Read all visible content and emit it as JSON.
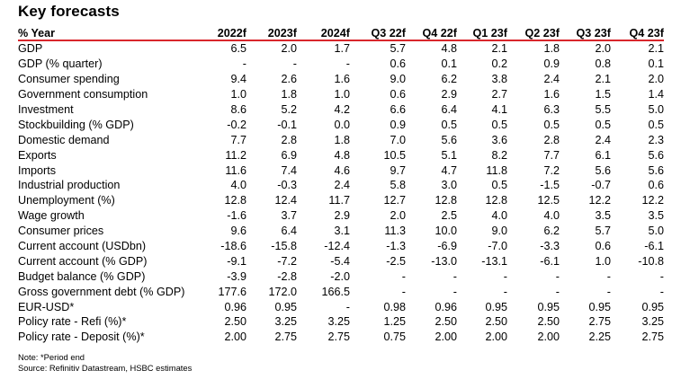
{
  "title": "Key forecasts",
  "columns": [
    "% Year",
    "2022f",
    "2023f",
    "2024f",
    "Q3 22f",
    "Q4 22f",
    "Q1 23f",
    "Q2 23f",
    "Q3 23f",
    "Q4 23f"
  ],
  "rows": [
    {
      "label": "GDP",
      "values": [
        "6.5",
        "2.0",
        "1.7",
        "5.7",
        "4.8",
        "2.1",
        "1.8",
        "2.0",
        "2.1"
      ]
    },
    {
      "label": "GDP (% quarter)",
      "values": [
        "-",
        "-",
        "-",
        "0.6",
        "0.1",
        "0.2",
        "0.9",
        "0.8",
        "0.1"
      ]
    },
    {
      "label": "Consumer spending",
      "values": [
        "9.4",
        "2.6",
        "1.6",
        "9.0",
        "6.2",
        "3.8",
        "2.4",
        "2.1",
        "2.0"
      ]
    },
    {
      "label": "Government consumption",
      "values": [
        "1.0",
        "1.8",
        "1.0",
        "0.6",
        "2.9",
        "2.7",
        "1.6",
        "1.5",
        "1.4"
      ]
    },
    {
      "label": "Investment",
      "values": [
        "8.6",
        "5.2",
        "4.2",
        "6.6",
        "6.4",
        "4.1",
        "6.3",
        "5.5",
        "5.0"
      ]
    },
    {
      "label": "Stockbuilding (% GDP)",
      "values": [
        "-0.2",
        "-0.1",
        "0.0",
        "0.9",
        "0.5",
        "0.5",
        "0.5",
        "0.5",
        "0.5"
      ]
    },
    {
      "label": "Domestic demand",
      "values": [
        "7.7",
        "2.8",
        "1.8",
        "7.0",
        "5.6",
        "3.6",
        "2.8",
        "2.4",
        "2.3"
      ]
    },
    {
      "label": "Exports",
      "values": [
        "11.2",
        "6.9",
        "4.8",
        "10.5",
        "5.1",
        "8.2",
        "7.7",
        "6.1",
        "5.6"
      ]
    },
    {
      "label": "Imports",
      "values": [
        "11.6",
        "7.4",
        "4.6",
        "9.7",
        "4.7",
        "11.8",
        "7.2",
        "5.6",
        "5.6"
      ]
    },
    {
      "label": "Industrial production",
      "values": [
        "4.0",
        "-0.3",
        "2.4",
        "5.8",
        "3.0",
        "0.5",
        "-1.5",
        "-0.7",
        "0.6"
      ]
    },
    {
      "label": "Unemployment (%)",
      "values": [
        "12.8",
        "12.4",
        "11.7",
        "12.7",
        "12.8",
        "12.8",
        "12.5",
        "12.2",
        "12.2"
      ]
    },
    {
      "label": "Wage growth",
      "values": [
        "-1.6",
        "3.7",
        "2.9",
        "2.0",
        "2.5",
        "4.0",
        "4.0",
        "3.5",
        "3.5"
      ]
    },
    {
      "label": "Consumer prices",
      "values": [
        "9.6",
        "6.4",
        "3.1",
        "11.3",
        "10.0",
        "9.0",
        "6.2",
        "5.7",
        "5.0"
      ]
    },
    {
      "label": "Current account (USDbn)",
      "values": [
        "-18.6",
        "-15.8",
        "-12.4",
        "-1.3",
        "-6.9",
        "-7.0",
        "-3.3",
        "0.6",
        "-6.1"
      ]
    },
    {
      "label": "Current account (% GDP)",
      "values": [
        "-9.1",
        "-7.2",
        "-5.4",
        "-2.5",
        "-13.0",
        "-13.1",
        "-6.1",
        "1.0",
        "-10.8"
      ]
    },
    {
      "label": "Budget balance (% GDP)",
      "values": [
        "-3.9",
        "-2.8",
        "-2.0",
        "-",
        "-",
        "-",
        "-",
        "-",
        "-"
      ]
    },
    {
      "label": "Gross government debt (% GDP)",
      "values": [
        "177.6",
        "172.0",
        "166.5",
        "-",
        "-",
        "-",
        "-",
        "-",
        "-"
      ]
    },
    {
      "label": "EUR-USD*",
      "values": [
        "0.96",
        "0.95",
        "-",
        "0.98",
        "0.96",
        "0.95",
        "0.95",
        "0.95",
        "0.95"
      ]
    },
    {
      "label": "Policy rate - Refi (%)*",
      "values": [
        "2.50",
        "3.25",
        "3.25",
        "1.25",
        "2.50",
        "2.50",
        "2.50",
        "2.75",
        "3.25"
      ]
    },
    {
      "label": "Policy rate - Deposit (%)*",
      "values": [
        "2.00",
        "2.75",
        "2.75",
        "0.75",
        "2.00",
        "2.00",
        "2.00",
        "2.25",
        "2.75"
      ]
    }
  ],
  "notes": {
    "note": "Note: *Period end",
    "source": "Source: Refinitiv Datastream, HSBC estimates"
  },
  "colors": {
    "header_rule": "#d9262c",
    "text": "#000000",
    "background": "#ffffff"
  }
}
